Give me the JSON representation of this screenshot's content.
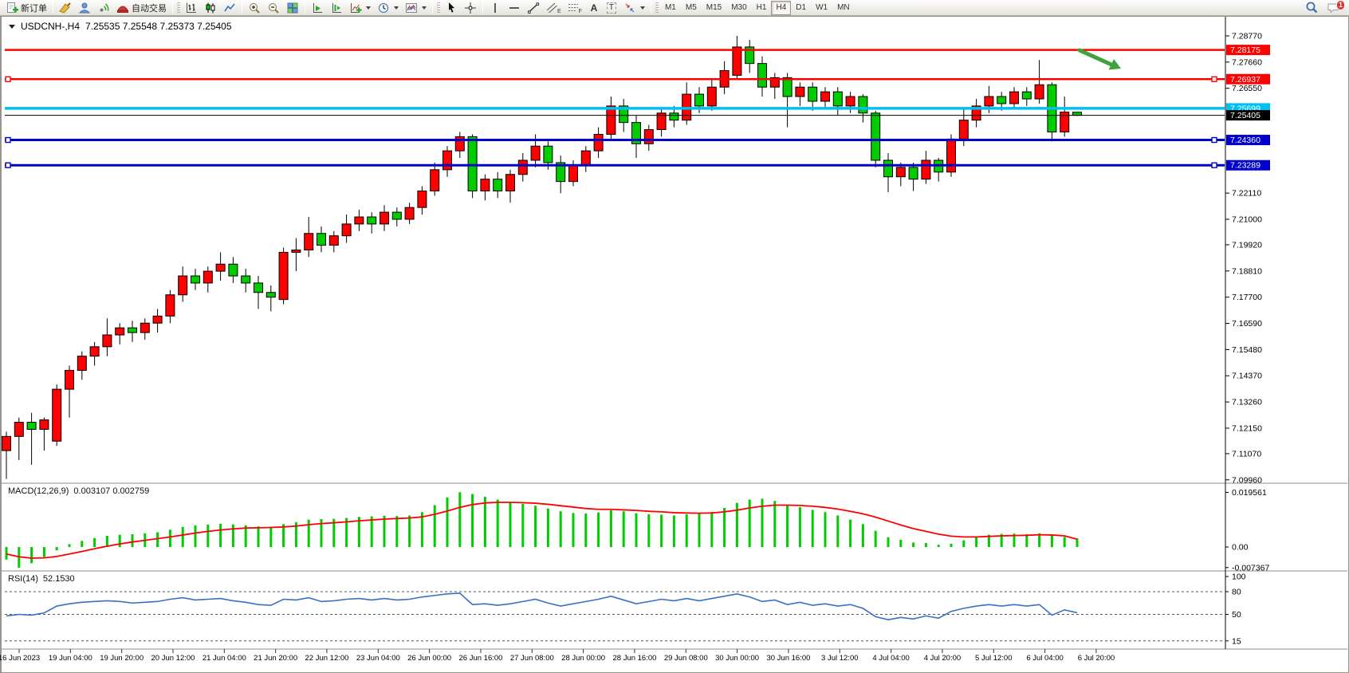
{
  "toolbar": {
    "new_order": "新订单",
    "auto_trading": "自动交易",
    "timeframes": [
      "M1",
      "M5",
      "M15",
      "M30",
      "H1",
      "H4",
      "D1",
      "W1",
      "MN"
    ],
    "active_timeframe": "H4",
    "notification_count": "1",
    "icon_glyphs": {
      "equidistant_channel": "E",
      "fibonacci": "F",
      "text": "A",
      "text_label": "T"
    }
  },
  "chart": {
    "title_symbol": "USDCNH-,H4",
    "title_ohlc": "7.25535 7.25548 7.25373 7.25405"
  },
  "chart_data": {
    "type": "candlestick",
    "symbol": "USDCNH-",
    "timeframe": "H4",
    "colors": {
      "bull": "#ff0000",
      "bear": "#00cc00",
      "background": "#ffffff",
      "axis": "#000000"
    },
    "y_axis_ticks": [
      "7.28770",
      "7.27660",
      "7.26550",
      "7.22110",
      "7.21000",
      "7.19920",
      "7.18810",
      "7.17700",
      "7.16590",
      "7.15480",
      "7.14370",
      "7.13260",
      "7.12150",
      "7.11070",
      "7.09960"
    ],
    "price_lines": [
      {
        "price": 7.28175,
        "label": "7.28175",
        "color": "#ff0000",
        "width": 2.5,
        "handles": false
      },
      {
        "price": 7.26937,
        "label": "7.26937",
        "color": "#ff0000",
        "width": 2.5,
        "handles": true
      },
      {
        "price": 7.25699,
        "label": "7.25699",
        "color": "#00c0f0",
        "width": 3.5,
        "handles": false
      },
      {
        "price": 7.2436,
        "label": "7.24360",
        "color": "#0000cc",
        "width": 3,
        "handles": true
      },
      {
        "price": 7.23289,
        "label": "7.23289",
        "color": "#0000cc",
        "width": 3,
        "handles": true
      }
    ],
    "current_price": {
      "value": 7.25405,
      "label": "7.25405"
    },
    "annotation_arrow": {
      "color": "#3fa23f",
      "direction": "down-right"
    },
    "x_labels": [
      "16 Jun 2023",
      "19 Jun 04:00",
      "19 Jun 20:00",
      "20 Jun 12:00",
      "21 Jun 04:00",
      "21 Jun 20:00",
      "22 Jun 12:00",
      "23 Jun 04:00",
      "26 Jun 00:00",
      "26 Jun 16:00",
      "27 Jun 08:00",
      "28 Jun 00:00",
      "28 Jun 16:00",
      "29 Jun 08:00",
      "30 Jun 00:00",
      "30 Jun 16:00",
      "3 Jul 12:00",
      "4 Jul 04:00",
      "4 Jul 20:00",
      "5 Jul 12:00",
      "6 Jul 04:00",
      "6 Jul 20:00"
    ],
    "candles": [
      [
        7.112,
        7.12,
        7.1,
        7.118
      ],
      [
        7.118,
        7.126,
        7.108,
        7.124
      ],
      [
        7.124,
        7.128,
        7.106,
        7.121
      ],
      [
        7.121,
        7.126,
        7.112,
        7.125
      ],
      [
        7.116,
        7.14,
        7.114,
        7.138
      ],
      [
        7.138,
        7.148,
        7.126,
        7.146
      ],
      [
        7.146,
        7.154,
        7.142,
        7.152
      ],
      [
        7.152,
        7.158,
        7.148,
        7.156
      ],
      [
        7.156,
        7.168,
        7.152,
        7.161
      ],
      [
        7.161,
        7.166,
        7.157,
        7.164
      ],
      [
        7.164,
        7.167,
        7.158,
        7.162
      ],
      [
        7.162,
        7.168,
        7.159,
        7.166
      ],
      [
        7.166,
        7.172,
        7.162,
        7.169
      ],
      [
        7.169,
        7.18,
        7.166,
        7.178
      ],
      [
        7.178,
        7.19,
        7.175,
        7.186
      ],
      [
        7.186,
        7.189,
        7.18,
        7.183
      ],
      [
        7.183,
        7.19,
        7.179,
        7.188
      ],
      [
        7.188,
        7.196,
        7.184,
        7.191
      ],
      [
        7.191,
        7.194,
        7.183,
        7.186
      ],
      [
        7.186,
        7.189,
        7.179,
        7.183
      ],
      [
        7.183,
        7.186,
        7.172,
        7.179
      ],
      [
        7.179,
        7.182,
        7.171,
        7.177
      ],
      [
        7.176,
        7.198,
        7.174,
        7.196
      ],
      [
        7.196,
        7.202,
        7.188,
        7.197
      ],
      [
        7.197,
        7.211,
        7.194,
        7.204
      ],
      [
        7.204,
        7.207,
        7.196,
        7.199
      ],
      [
        7.199,
        7.205,
        7.196,
        7.203
      ],
      [
        7.203,
        7.212,
        7.2,
        7.208
      ],
      [
        7.208,
        7.214,
        7.205,
        7.211
      ],
      [
        7.211,
        7.213,
        7.204,
        7.208
      ],
      [
        7.208,
        7.216,
        7.205,
        7.213
      ],
      [
        7.213,
        7.215,
        7.207,
        7.21
      ],
      [
        7.21,
        7.217,
        7.208,
        7.215
      ],
      [
        7.215,
        7.224,
        7.212,
        7.222
      ],
      [
        7.222,
        7.234,
        7.22,
        7.231
      ],
      [
        7.231,
        7.241,
        7.228,
        7.239
      ],
      [
        7.239,
        7.247,
        7.236,
        7.245
      ],
      [
        7.245,
        7.246,
        7.219,
        7.222
      ],
      [
        7.222,
        7.229,
        7.218,
        7.227
      ],
      [
        7.227,
        7.23,
        7.219,
        7.222
      ],
      [
        7.222,
        7.231,
        7.217,
        7.229
      ],
      [
        7.229,
        7.238,
        7.226,
        7.235
      ],
      [
        7.235,
        7.246,
        7.232,
        7.241
      ],
      [
        7.241,
        7.243,
        7.231,
        7.234
      ],
      [
        7.234,
        7.237,
        7.221,
        7.226
      ],
      [
        7.226,
        7.235,
        7.224,
        7.233
      ],
      [
        7.233,
        7.241,
        7.23,
        7.239
      ],
      [
        7.239,
        7.249,
        7.236,
        7.246
      ],
      [
        7.246,
        7.262,
        7.244,
        7.258
      ],
      [
        7.258,
        7.261,
        7.247,
        7.251
      ],
      [
        7.251,
        7.254,
        7.236,
        7.242
      ],
      [
        7.242,
        7.25,
        7.239,
        7.248
      ],
      [
        7.248,
        7.257,
        7.245,
        7.255
      ],
      [
        7.255,
        7.258,
        7.249,
        7.252
      ],
      [
        7.252,
        7.268,
        7.25,
        7.263
      ],
      [
        7.263,
        7.266,
        7.255,
        7.258
      ],
      [
        7.258,
        7.269,
        7.256,
        7.266
      ],
      [
        7.266,
        7.277,
        7.263,
        7.273
      ],
      [
        7.271,
        7.2877,
        7.269,
        7.283
      ],
      [
        7.283,
        7.286,
        7.272,
        7.276
      ],
      [
        7.276,
        7.279,
        7.262,
        7.266
      ],
      [
        7.266,
        7.272,
        7.261,
        7.27
      ],
      [
        7.27,
        7.272,
        7.249,
        7.262
      ],
      [
        7.262,
        7.268,
        7.258,
        7.266
      ],
      [
        7.266,
        7.268,
        7.256,
        7.26
      ],
      [
        7.26,
        7.266,
        7.257,
        7.264
      ],
      [
        7.264,
        7.266,
        7.254,
        7.258
      ],
      [
        7.258,
        7.264,
        7.255,
        7.262
      ],
      [
        7.262,
        7.263,
        7.251,
        7.255
      ],
      [
        7.255,
        7.256,
        7.232,
        7.235
      ],
      [
        7.235,
        7.238,
        7.2215,
        7.228
      ],
      [
        7.228,
        7.234,
        7.224,
        7.232
      ],
      [
        7.232,
        7.234,
        7.222,
        7.227
      ],
      [
        7.227,
        7.239,
        7.225,
        7.235
      ],
      [
        7.235,
        7.236,
        7.226,
        7.23
      ],
      [
        7.23,
        7.246,
        7.228,
        7.244
      ],
      [
        7.244,
        7.257,
        7.241,
        7.252
      ],
      [
        7.252,
        7.261,
        7.249,
        7.258
      ],
      [
        7.258,
        7.2665,
        7.255,
        7.262
      ],
      [
        7.262,
        7.264,
        7.256,
        7.259
      ],
      [
        7.259,
        7.266,
        7.257,
        7.264
      ],
      [
        7.264,
        7.266,
        7.258,
        7.261
      ],
      [
        7.261,
        7.2775,
        7.259,
        7.267
      ],
      [
        7.267,
        7.268,
        7.243,
        7.247
      ],
      [
        7.247,
        7.262,
        7.245,
        7.2554
      ],
      [
        7.25535,
        7.25548,
        7.25373,
        7.25405
      ]
    ],
    "indicators": {
      "macd": {
        "label": "MACD(12,26,9)",
        "values_label": "0.003107 0.002759",
        "histogram_color": "#00cc00",
        "signal_color": "#ff0000",
        "y_ticks": [
          "0.019561",
          "0.00",
          "-0.007367"
        ],
        "histogram": [
          -0.0045,
          -0.0074,
          -0.0058,
          -0.0036,
          -0.0012,
          0.001,
          0.0022,
          0.0032,
          0.004,
          0.0044,
          0.0046,
          0.0049,
          0.0053,
          0.0062,
          0.0072,
          0.0077,
          0.008,
          0.0083,
          0.0081,
          0.0078,
          0.0074,
          0.0073,
          0.0082,
          0.0089,
          0.0098,
          0.01,
          0.0101,
          0.0104,
          0.0108,
          0.011,
          0.0112,
          0.0111,
          0.0113,
          0.0125,
          0.015,
          0.0178,
          0.0196,
          0.019,
          0.018,
          0.017,
          0.0162,
          0.0155,
          0.0148,
          0.0138,
          0.0128,
          0.0122,
          0.012,
          0.0124,
          0.0132,
          0.0128,
          0.0121,
          0.0117,
          0.0116,
          0.0113,
          0.0117,
          0.0119,
          0.0126,
          0.014,
          0.0158,
          0.017,
          0.0173,
          0.0165,
          0.0152,
          0.0143,
          0.0133,
          0.0125,
          0.0113,
          0.0098,
          0.0082,
          0.0058,
          0.0035,
          0.0026,
          0.0016,
          0.0014,
          0.0008,
          0.0012,
          0.0024,
          0.0036,
          0.0044,
          0.0047,
          0.0048,
          0.0046,
          0.0049,
          0.0042,
          0.0036,
          0.0031
        ],
        "signal": [
          -0.0025,
          -0.0035,
          -0.004,
          -0.0039,
          -0.0034,
          -0.0025,
          -0.0016,
          -0.0006,
          0.0003,
          0.0011,
          0.0018,
          0.0024,
          0.003,
          0.0036,
          0.0043,
          0.005,
          0.0056,
          0.0061,
          0.0065,
          0.0068,
          0.0069,
          0.007,
          0.0072,
          0.0075,
          0.008,
          0.0084,
          0.0087,
          0.009,
          0.0094,
          0.0097,
          0.01,
          0.0102,
          0.0104,
          0.0108,
          0.0117,
          0.0129,
          0.0142,
          0.0152,
          0.0158,
          0.016,
          0.016,
          0.0159,
          0.0157,
          0.0153,
          0.0148,
          0.0143,
          0.0138,
          0.0135,
          0.0135,
          0.0133,
          0.0131,
          0.0128,
          0.0126,
          0.0123,
          0.0122,
          0.0121,
          0.0122,
          0.0126,
          0.0132,
          0.014,
          0.0146,
          0.015,
          0.015,
          0.0149,
          0.0146,
          0.0142,
          0.0136,
          0.0128,
          0.0119,
          0.0107,
          0.0093,
          0.0079,
          0.0066,
          0.0056,
          0.0046,
          0.0039,
          0.0036,
          0.0036,
          0.0038,
          0.004,
          0.0041,
          0.0042,
          0.0044,
          0.0043,
          0.004,
          0.0028
        ]
      },
      "rsi": {
        "label": "RSI(14)",
        "value_label": "52.1530",
        "color": "#3a6fc4",
        "levels": [
          80,
          50,
          15
        ],
        "y_ticks": [
          "100",
          "80",
          "50",
          "15"
        ],
        "values": [
          48,
          50,
          49,
          52,
          61,
          64,
          66,
          67,
          68,
          67,
          65,
          66,
          67,
          70,
          72,
          69,
          70,
          71,
          68,
          66,
          63,
          62,
          70,
          69,
          72,
          67,
          68,
          70,
          71,
          69,
          71,
          69,
          70,
          73,
          75,
          77,
          78,
          63,
          64,
          62,
          64,
          67,
          70,
          65,
          61,
          64,
          67,
          70,
          74,
          69,
          64,
          67,
          70,
          68,
          71,
          68,
          71,
          74,
          77,
          73,
          67,
          69,
          63,
          66,
          62,
          64,
          61,
          63,
          58,
          47,
          43,
          46,
          44,
          48,
          45,
          54,
          58,
          61,
          63,
          61,
          63,
          61,
          63,
          49,
          56,
          52.15
        ]
      }
    }
  }
}
